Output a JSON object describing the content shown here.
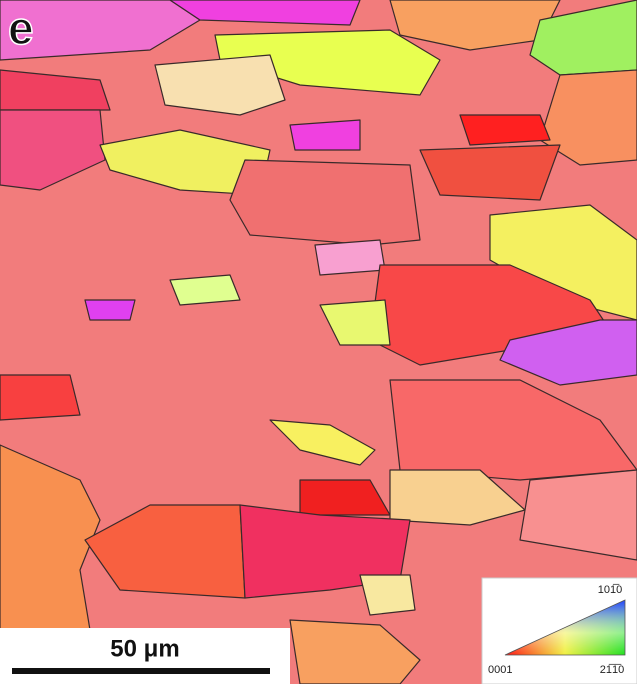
{
  "panel_label": "e",
  "scale_bar": {
    "label": "50 μm"
  },
  "ipf_key": {
    "top": "101̅0",
    "bottom_left": "0001",
    "bottom_right": "21̅1̅0"
  }
}
